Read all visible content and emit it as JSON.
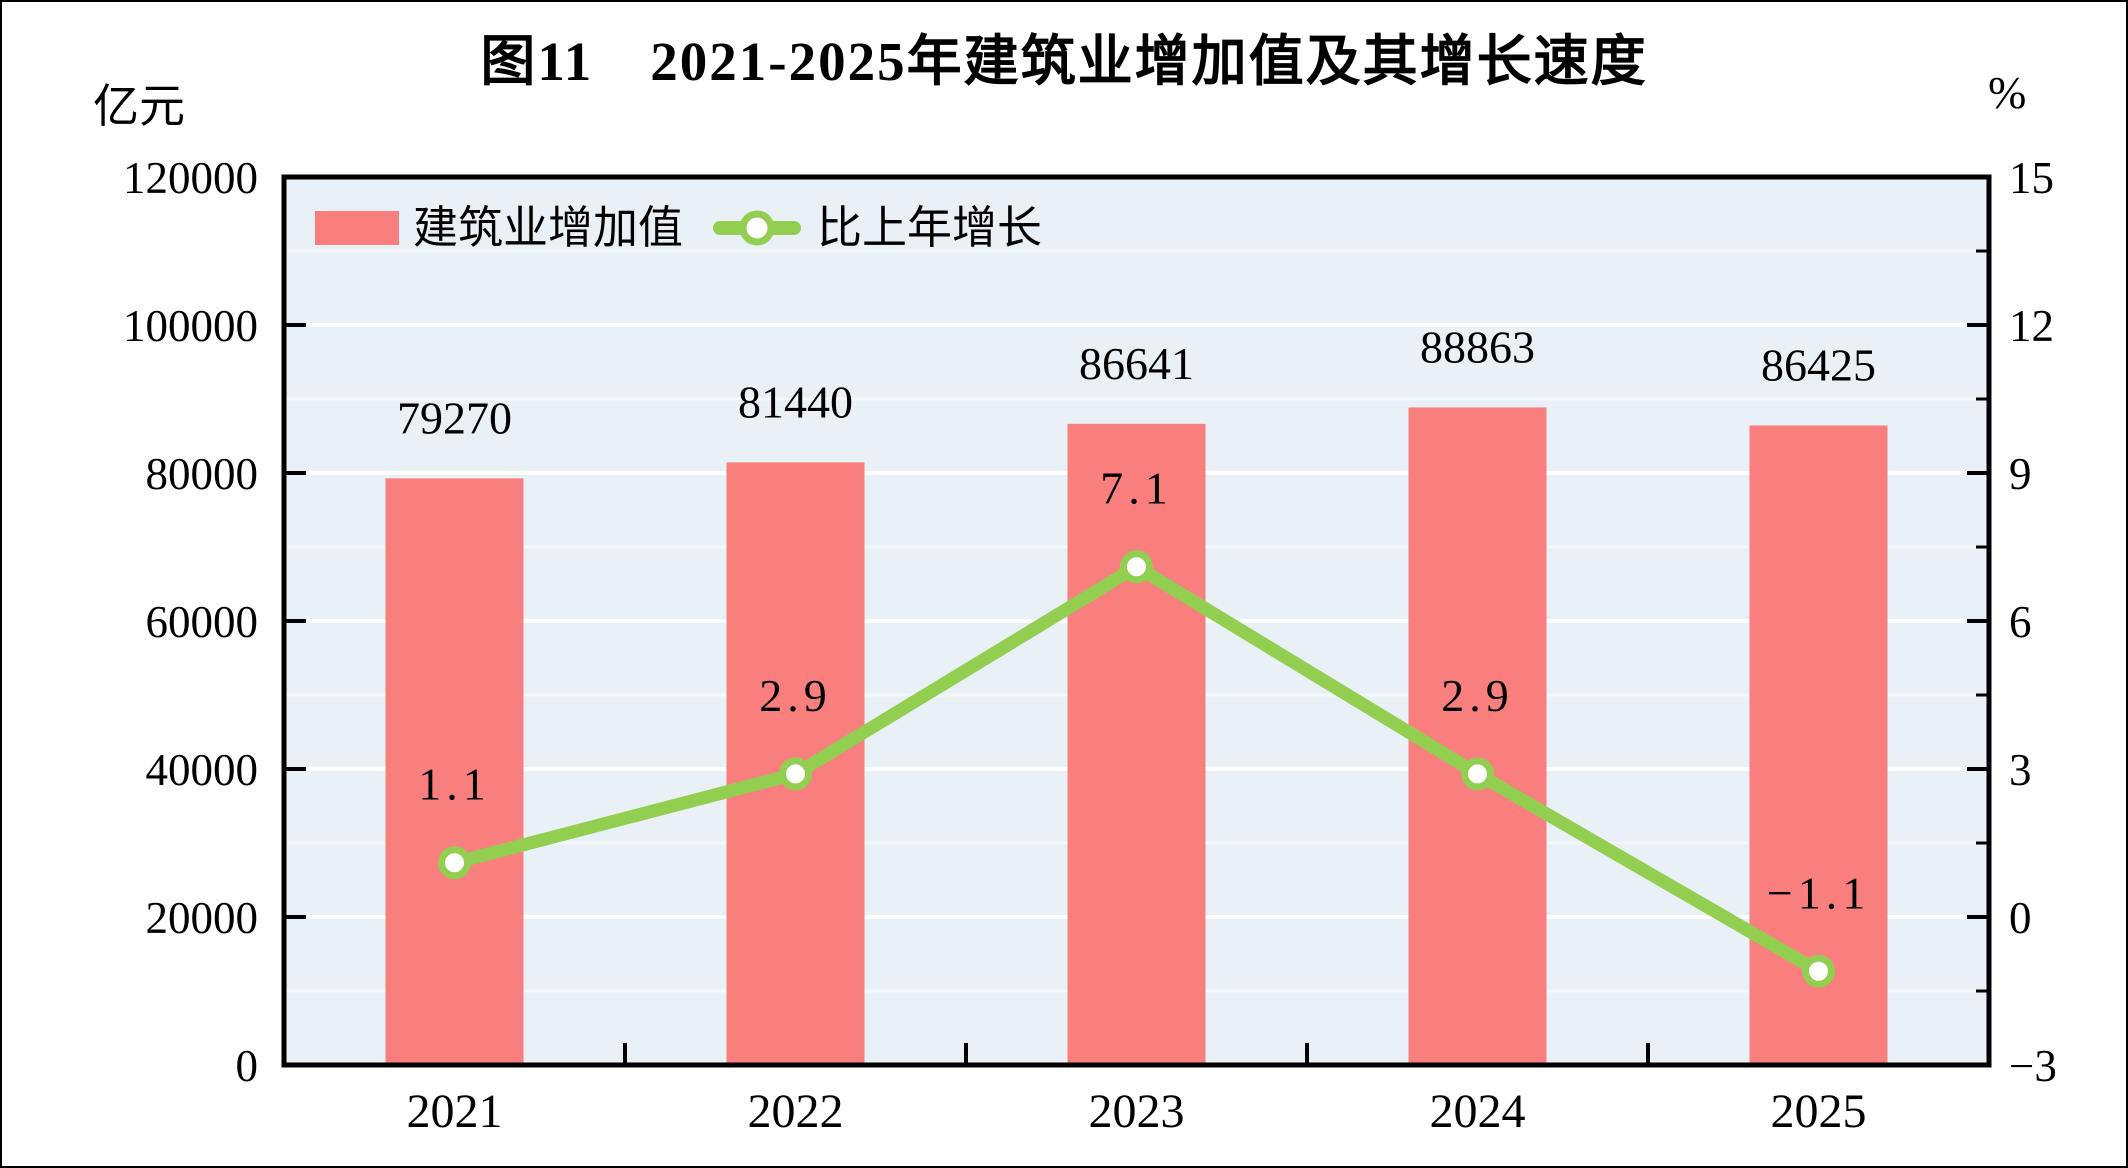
{
  "figure": {
    "border_color": "#000000",
    "background": "#ffffff"
  },
  "chart_data": {
    "type": "bar+line combo",
    "title": "图11　2021-2025年建筑业增加值及其增长速度",
    "categories": [
      "2021",
      "2022",
      "2023",
      "2024",
      "2025"
    ],
    "series": [
      {
        "name": "建筑业增加值",
        "type": "bar",
        "axis": "left",
        "values": [
          79270,
          81440,
          86641,
          88863,
          86425
        ],
        "value_labels": [
          "79270",
          "81440",
          "86641",
          "88863",
          "86425"
        ],
        "color": "#f97f7f"
      },
      {
        "name": "比上年增长",
        "type": "line",
        "axis": "right",
        "values": [
          1.1,
          2.9,
          7.1,
          2.9,
          -1.1
        ],
        "value_labels": [
          "1.1",
          "2.9",
          "7.1",
          "2.9",
          "−1.1"
        ],
        "color": "#92ce50",
        "marker_fill": "#ffffff"
      }
    ],
    "left_axis": {
      "unit": "亿元",
      "min": 0,
      "max": 120000,
      "tick_step": 20000,
      "tick_labels": [
        "120000",
        "100000",
        "80000",
        "60000",
        "40000",
        "20000",
        "0"
      ]
    },
    "right_axis": {
      "unit": "%",
      "min": -3,
      "max": 15,
      "tick_step": 3,
      "tick_labels": [
        "15",
        "12",
        "9",
        "6",
        "3",
        "0",
        "−3"
      ]
    },
    "legend": {
      "position": "top-left-inside",
      "entries": [
        "建筑业增加值",
        "比上年增长"
      ]
    },
    "plot_style": {
      "background": "#e9f1f6",
      "gridline_color": "#ffffff",
      "grid": "horizontal major + faint minor",
      "border_color": "#000000",
      "text_color": "#000000"
    }
  }
}
